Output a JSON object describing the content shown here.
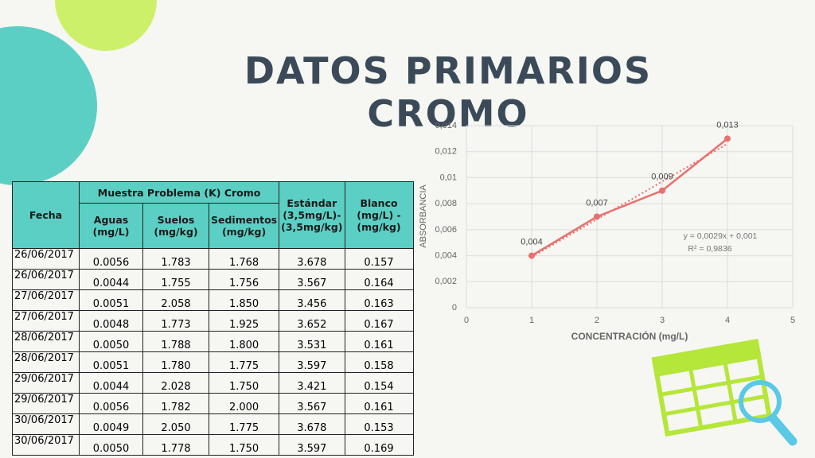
{
  "title": "DATOS PRIMARIOS CROMO",
  "table": {
    "headers": {
      "fecha": "Fecha",
      "group": "Muestra Problema (K) Cromo",
      "aguas": "Aguas (mg/L)",
      "suelos": "Suelos (mg/kg)",
      "sedimentos": "Sedimentos (mg/kg)",
      "estandar": "Estándar (3,5mg/L)-(3,5mg/kg)",
      "blanco": "Blanco (mg/L) - (mg/kg)"
    },
    "rows": [
      [
        "26/06/2017",
        "0.0056",
        "1.783",
        "1.768",
        "3.678",
        "0.157"
      ],
      [
        "26/06/2017",
        "0.0044",
        "1.755",
        "1.756",
        "3.567",
        "0.164"
      ],
      [
        "27/06/2017",
        "0.0051",
        "2.058",
        "1.850",
        "3.456",
        "0.163"
      ],
      [
        "27/06/2017",
        "0.0048",
        "1.773",
        "1.925",
        "3.652",
        "0.167"
      ],
      [
        "28/06/2017",
        "0.0050",
        "1.788",
        "1.800",
        "3.531",
        "0.161"
      ],
      [
        "28/06/2017",
        "0.0051",
        "1.780",
        "1.775",
        "3.597",
        "0.158"
      ],
      [
        "29/06/2017",
        "0.0044",
        "2.028",
        "1.750",
        "3.421",
        "0.154"
      ],
      [
        "29/06/2017",
        "0.0056",
        "1.782",
        "2.000",
        "3.567",
        "0.161"
      ],
      [
        "30/06/2017",
        "0.0049",
        "2.050",
        "1.775",
        "3.678",
        "0.153"
      ],
      [
        "30/06/2017",
        "0.0050",
        "1.778",
        "1.750",
        "3.597",
        "0.169"
      ]
    ]
  },
  "chart_data": {
    "type": "line",
    "x_label": "CONCENTRACIÓN (mg/L)",
    "y_label": "ABSORBANCIA",
    "x": [
      1,
      2,
      3,
      4
    ],
    "values": [
      0.004,
      0.007,
      0.009,
      0.013
    ],
    "value_labels": [
      "0,004",
      "0,007",
      "0,009",
      "0,013"
    ],
    "color": "#e8706e",
    "xlim": [
      0,
      5
    ],
    "xticks": [
      0,
      1,
      2,
      3,
      4,
      5
    ],
    "ylim": [
      0,
      0.014
    ],
    "yticks": [
      0,
      {
        "value": 0.002,
        "label": "0,002"
      },
      {
        "value": 0.004,
        "label": "0,004"
      },
      {
        "value": 0.006,
        "label": "0,006"
      },
      {
        "value": 0.008,
        "label": "0,008"
      },
      {
        "value": 0.01,
        "label": "0,01"
      },
      {
        "value": 0.012,
        "label": "0,012"
      },
      {
        "value": 0.014,
        "label": "0,014"
      }
    ],
    "grid": true,
    "trendline": {
      "slope": 0.0029,
      "intercept": 0.001,
      "label": "y = 0,0029x + 0,001",
      "r2_label": "R² = 0,9836"
    }
  }
}
